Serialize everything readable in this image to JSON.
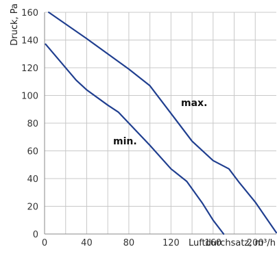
{
  "chart_data": {
    "type": "line",
    "title": "",
    "xlabel": "Luftdurchsatz, m³/h",
    "ylabel": "Druck, Pa",
    "xlim": [
      0,
      220
    ],
    "ylim": [
      0,
      160
    ],
    "x_ticks": [
      "0",
      "40",
      "80",
      "120",
      "160",
      "200"
    ],
    "y_ticks": [
      "0",
      "20",
      "40",
      "60",
      "80",
      "100",
      "120",
      "140",
      "160"
    ],
    "grid": true,
    "line_color": "#1f3e8f",
    "series": [
      {
        "name": "max.",
        "points": [
          [
            4,
            160
          ],
          [
            40,
            141
          ],
          [
            80,
            119
          ],
          [
            100,
            107
          ],
          [
            120,
            87
          ],
          [
            140,
            67
          ],
          [
            160,
            53
          ],
          [
            175,
            47
          ],
          [
            185,
            37
          ],
          [
            200,
            23
          ],
          [
            220,
            1
          ]
        ]
      },
      {
        "name": "min.",
        "points": [
          [
            1,
            137
          ],
          [
            30,
            111
          ],
          [
            40,
            104
          ],
          [
            60,
            93
          ],
          [
            70,
            88
          ],
          [
            80,
            80
          ],
          [
            100,
            64
          ],
          [
            120,
            47
          ],
          [
            135,
            38
          ],
          [
            150,
            22
          ],
          [
            160,
            10
          ],
          [
            170,
            0
          ]
        ]
      }
    ]
  }
}
